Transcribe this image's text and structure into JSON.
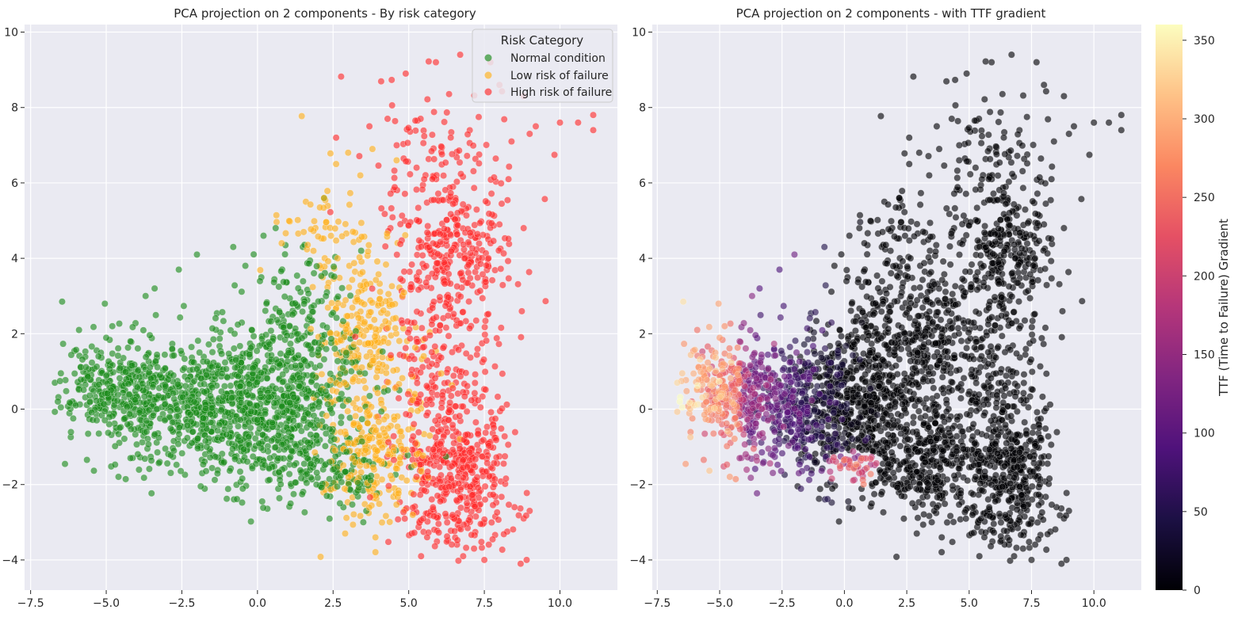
{
  "chart_data": [
    {
      "type": "scatter",
      "title": "PCA projection on 2 components - By risk category",
      "xlabel": "",
      "ylabel": "",
      "xlim": [
        -7.7,
        11.9
      ],
      "ylim": [
        -4.8,
        10.2
      ],
      "x_ticks": [
        -7.5,
        -5.0,
        -2.5,
        0.0,
        2.5,
        5.0,
        7.5,
        10.0
      ],
      "x_tick_labels": [
        "−7.5",
        "−5.0",
        "−2.5",
        "0.0",
        "2.5",
        "5.0",
        "7.5",
        "10.0"
      ],
      "y_ticks": [
        -4,
        -2,
        0,
        2,
        4,
        6,
        8,
        10
      ],
      "y_tick_labels": [
        "−4",
        "−2",
        "0",
        "2",
        "4",
        "6",
        "8",
        "10"
      ],
      "grid": true,
      "legend": {
        "title": "Risk Category",
        "position": "top-right",
        "entries": [
          {
            "label": "Normal condition",
            "color": "#1a8a1a"
          },
          {
            "label": "Low risk of failure",
            "color": "#ffb01a"
          },
          {
            "label": "High risk of failure",
            "color": "#ff2a2a"
          }
        ]
      },
      "series": [
        {
          "name": "Normal condition",
          "color": "#1a8a1a",
          "clusters": [
            {
              "cx": -2.0,
              "cy": 0.1,
              "sx": 1.9,
              "sy": 0.85,
              "n": 700
            },
            {
              "cx": 0.8,
              "cy": 0.2,
              "sx": 1.3,
              "sy": 1.0,
              "n": 500
            },
            {
              "cx": -4.8,
              "cy": 0.6,
              "sx": 0.8,
              "sy": 0.6,
              "n": 220
            },
            {
              "cx": 1.5,
              "cy": 2.5,
              "sx": 1.0,
              "sy": 0.9,
              "n": 140
            },
            {
              "cx": 1.8,
              "cy": -1.6,
              "sx": 1.3,
              "sy": 0.5,
              "n": 160
            }
          ],
          "points": [
            [
              -6.7,
              0.7
            ],
            [
              -6.5,
              0.95
            ],
            [
              -6.6,
              0.2
            ],
            [
              -5.9,
              2.1
            ],
            [
              -4.8,
              2.2
            ],
            [
              -3.7,
              3.0
            ],
            [
              -3.4,
              3.2
            ],
            [
              -2.6,
              3.7
            ],
            [
              -2.0,
              4.1
            ],
            [
              -0.4,
              3.8
            ],
            [
              0.2,
              4.6
            ],
            [
              0.6,
              4.8
            ],
            [
              1.5,
              4.3
            ],
            [
              -0.8,
              4.3
            ],
            [
              -4.2,
              -1.3
            ],
            [
              3.5,
              -3.0
            ],
            [
              3.6,
              -2.7
            ]
          ]
        },
        {
          "name": "Low risk of failure",
          "color": "#ffb01a",
          "clusters": [
            {
              "cx": 3.6,
              "cy": 1.8,
              "sx": 0.8,
              "sy": 1.3,
              "n": 260
            },
            {
              "cx": 3.9,
              "cy": -1.2,
              "sx": 0.8,
              "sy": 0.9,
              "n": 200
            },
            {
              "cx": 2.3,
              "cy": 4.8,
              "sx": 0.8,
              "sy": 0.9,
              "n": 60
            }
          ],
          "points": [
            [
              3.0,
              6.8
            ],
            [
              2.6,
              6.5
            ],
            [
              2.2,
              5.6
            ],
            [
              3.4,
              6.2
            ],
            [
              3.8,
              6.9
            ],
            [
              1.6,
              5.5
            ],
            [
              2.9,
              -3.3
            ],
            [
              3.9,
              -3.4
            ],
            [
              4.6,
              6.6
            ],
            [
              0.8,
              4.4
            ]
          ]
        },
        {
          "name": "High risk of failure",
          "color": "#ff2a2a",
          "clusters": [
            {
              "cx": 6.6,
              "cy": -1.8,
              "sx": 0.95,
              "sy": 0.95,
              "n": 420
            },
            {
              "cx": 6.4,
              "cy": 4.0,
              "sx": 1.0,
              "sy": 1.1,
              "n": 320
            },
            {
              "cx": 6.3,
              "cy": 1.0,
              "sx": 0.9,
              "sy": 1.0,
              "n": 160
            },
            {
              "cx": 5.8,
              "cy": 7.0,
              "sx": 1.2,
              "sy": 1.0,
              "n": 90
            }
          ],
          "points": [
            [
              11.1,
              7.8
            ],
            [
              11.1,
              7.4
            ],
            [
              10.0,
              7.6
            ],
            [
              10.6,
              7.6
            ],
            [
              9.2,
              7.5
            ],
            [
              9.0,
              7.3
            ],
            [
              8.8,
              8.3
            ],
            [
              7.7,
              9.2
            ],
            [
              6.7,
              9.4
            ],
            [
              5.9,
              9.2
            ],
            [
              4.9,
              8.9
            ],
            [
              4.3,
              7.7
            ],
            [
              3.7,
              7.5
            ],
            [
              2.6,
              7.2
            ],
            [
              8.3,
              6.1
            ],
            [
              8.8,
              4.8
            ],
            [
              8.0,
              4.9
            ],
            [
              8.7,
              -4.1
            ],
            [
              8.9,
              -4.0
            ],
            [
              7.5,
              -4.0
            ],
            [
              6.8,
              -3.9
            ],
            [
              8.8,
              -2.9
            ],
            [
              9.0,
              -2.7
            ],
            [
              8.5,
              -2.6
            ],
            [
              5.1,
              -3.3
            ],
            [
              8.4,
              7.1
            ],
            [
              8.0,
              8.6
            ]
          ]
        }
      ]
    },
    {
      "type": "scatter",
      "title": "PCA projection on 2 components - with TTF gradient",
      "xlabel": "",
      "ylabel": "",
      "xlim": [
        -7.7,
        11.9
      ],
      "ylim": [
        -4.8,
        10.2
      ],
      "x_ticks": [
        -7.5,
        -5.0,
        -2.5,
        0.0,
        2.5,
        5.0,
        7.5,
        10.0
      ],
      "x_tick_labels": [
        "−7.5",
        "−5.0",
        "−2.5",
        "0.0",
        "2.5",
        "5.0",
        "7.5",
        "10.0"
      ],
      "y_ticks": [
        -4,
        -2,
        0,
        2,
        4,
        6,
        8,
        10
      ],
      "y_tick_labels": [
        "−4",
        "−2",
        "0",
        "2",
        "4",
        "6",
        "8",
        "10"
      ],
      "grid": true,
      "colormap": "magma",
      "color_by": "TTF",
      "points_same_as_chart": 1,
      "colorbar": {
        "label": "TTF (Time to Failure) Gradient",
        "min": 0,
        "max": 360,
        "ticks": [
          0,
          50,
          100,
          150,
          200,
          250,
          300,
          350
        ],
        "tick_labels": [
          "0",
          "50",
          "100",
          "150",
          "200",
          "250",
          "300",
          "350"
        ],
        "position": "right"
      }
    }
  ]
}
